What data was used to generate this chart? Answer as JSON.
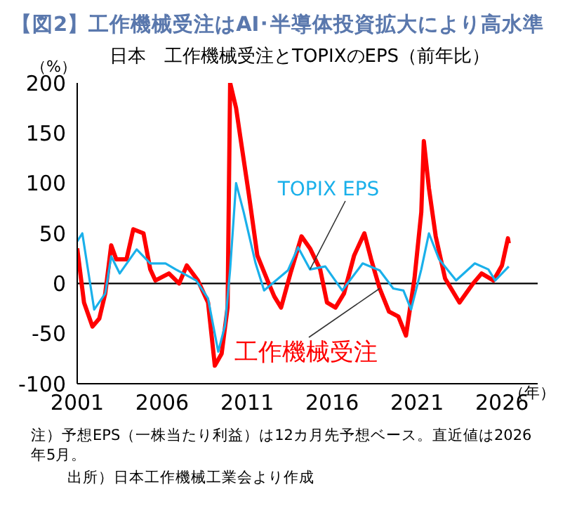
{
  "chart_data": {
    "type": "line",
    "title": "【図2】工作機械受注はAI･半導体投資拡大により高水準",
    "subtitle": "日本　工作機械受注とTOPIXのEPS（前年比）",
    "ylabel": "（%）",
    "xlabel": "（年）",
    "xlim": [
      2001,
      2028.1
    ],
    "xticks": [
      2001,
      2006,
      2011,
      2016,
      2021,
      2026
    ],
    "ylim": [
      -100,
      200
    ],
    "yticks": [
      -100,
      -50,
      0,
      50,
      100,
      150,
      200
    ],
    "grid": false,
    "legend": false,
    "ref_lines": [
      {
        "axis": "y",
        "value": 0,
        "color": "#000000"
      }
    ],
    "series": [
      {
        "name": "工作機械受注",
        "color": "#ff0000",
        "x": [
          2001.0,
          2001.4,
          2001.9,
          2002.3,
          2002.65,
          2003.0,
          2003.3,
          2003.9,
          2004.3,
          2004.9,
          2005.3,
          2005.6,
          2006.4,
          2007.0,
          2007.45,
          2008.1,
          2008.7,
          2009.1,
          2009.5,
          2009.85,
          2010.0,
          2010.35,
          2010.6,
          2011.1,
          2011.6,
          2012.2,
          2012.6,
          2013.0,
          2013.55,
          2014.2,
          2014.7,
          2015.3,
          2015.7,
          2016.2,
          2016.7,
          2017.3,
          2017.9,
          2018.3,
          2018.8,
          2019.35,
          2019.9,
          2020.35,
          2020.85,
          2021.25,
          2021.4,
          2021.7,
          2022.1,
          2022.65,
          2023.5,
          2024.3,
          2024.8,
          2025.5,
          2026.0,
          2026.35,
          2026.4
        ],
        "values": [
          35,
          -19,
          -43,
          -35,
          -10,
          38,
          24,
          24,
          54,
          50,
          14,
          3,
          10,
          0,
          18,
          3,
          -19,
          -82,
          -70,
          -24,
          200,
          175,
          146,
          89,
          28,
          3,
          -13,
          -24,
          10,
          47,
          35,
          14,
          -19,
          -24,
          -10,
          28,
          50,
          24,
          -5,
          -28,
          -33,
          -52,
          5,
          71,
          142,
          95,
          47,
          5,
          -19,
          0,
          10,
          3,
          18,
          45,
          40
        ]
      },
      {
        "name": "TOPIX EPS",
        "color": "#1ab0ea",
        "x": [
          2001.0,
          2001.3,
          2002.0,
          2002.65,
          2003.0,
          2003.5,
          2004.5,
          2005.3,
          2006.2,
          2006.8,
          2008.0,
          2008.7,
          2009.3,
          2009.7,
          2010.0,
          2010.35,
          2010.8,
          2011.5,
          2012.0,
          2012.7,
          2013.4,
          2014.0,
          2014.7,
          2015.6,
          2016.6,
          2017.8,
          2018.8,
          2019.6,
          2020.2,
          2020.65,
          2021.25,
          2021.7,
          2022.3,
          2023.3,
          2024.4,
          2025.2,
          2025.6,
          2026.4
        ],
        "values": [
          42,
          50,
          -26,
          -10,
          27,
          10,
          34,
          20,
          20,
          14,
          3,
          -15,
          -68,
          -42,
          14,
          100,
          71,
          20,
          -7,
          3,
          13,
          36,
          14,
          17,
          -7,
          20,
          13,
          -5,
          -7,
          -26,
          14,
          50,
          24,
          3,
          20,
          14,
          3,
          17
        ]
      }
    ],
    "annotations": [
      "注）予想EPS（一株当たり利益）は12カ月先予想ベース。直近値は2026年5月。",
      "出所）日本工作機械工業会より作成"
    ]
  }
}
